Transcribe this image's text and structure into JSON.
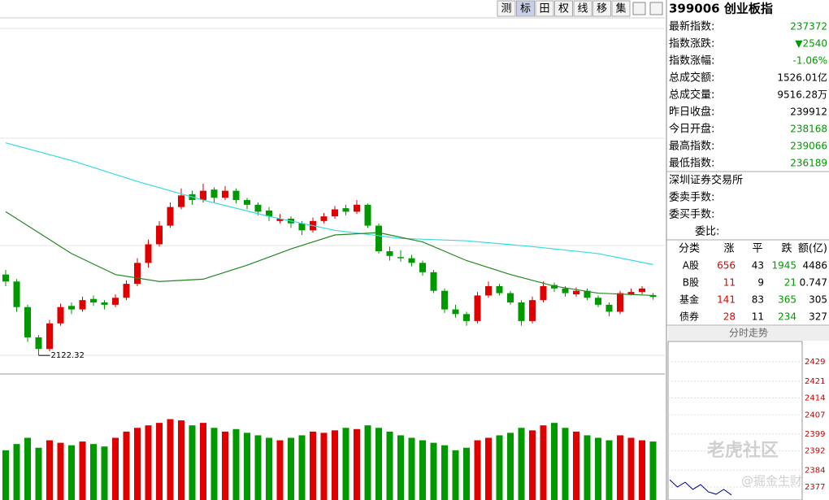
{
  "toolbar": {
    "buttons": [
      "测",
      "标",
      "田",
      "权",
      "线",
      "移",
      "集"
    ],
    "active": 1
  },
  "quote": {
    "title": "399006 创业板指",
    "rows": [
      {
        "label": "最新指数:",
        "value": "237372",
        "color": "#009900"
      },
      {
        "label": "指数涨跌:",
        "value": "▼2540",
        "color": "#009900"
      },
      {
        "label": "指数涨幅:",
        "value": "-1.06%",
        "color": "#009900"
      },
      {
        "label": "总成交额:",
        "value": "1526.01亿",
        "color": "#000000"
      },
      {
        "label": "总成交量:",
        "value": "9516.28万",
        "color": "#000000"
      },
      {
        "label": "昨日收盘:",
        "value": "239912",
        "color": "#000000"
      },
      {
        "label": "今日开盘:",
        "value": "238168",
        "color": "#009900"
      },
      {
        "label": "最高指数:",
        "value": "239066",
        "color": "#009900"
      },
      {
        "label": "最低指数:",
        "value": "236189",
        "color": "#009900"
      }
    ],
    "exchange": "深圳证券交易所",
    "orders": [
      "委卖手数:",
      "委买手数:",
      "委比:"
    ]
  },
  "stats": {
    "header": [
      "分类",
      "涨",
      "平",
      "跌",
      "额(亿)"
    ],
    "column_colors": [
      "#000000",
      "#dd0000",
      "#000000",
      "#009900",
      "#000000"
    ],
    "rows": [
      [
        "A股",
        "656",
        "43",
        "1945",
        "4486"
      ],
      [
        "B股",
        "11",
        "9",
        "21",
        "0.747"
      ],
      [
        "基金",
        "141",
        "83",
        "365",
        "305"
      ],
      [
        "债券",
        "28",
        "11",
        "234",
        "327"
      ]
    ]
  },
  "chart_data": {
    "type": "candlestick",
    "up_color": "#e00000",
    "down_color": "#009900",
    "ylim": [
      2060,
      3580
    ],
    "candles": [
      [
        2470,
        2490,
        2420,
        2440
      ],
      [
        2440,
        2450,
        2310,
        2330
      ],
      [
        2330,
        2340,
        2180,
        2200
      ],
      [
        2200,
        2210,
        2122.32,
        2150
      ],
      [
        2150,
        2275,
        2140,
        2260
      ],
      [
        2260,
        2345,
        2250,
        2330
      ],
      [
        2335,
        2350,
        2300,
        2320
      ],
      [
        2320,
        2375,
        2310,
        2360
      ],
      [
        2365,
        2380,
        2335,
        2350
      ],
      [
        2350,
        2360,
        2320,
        2340
      ],
      [
        2340,
        2385,
        2330,
        2370
      ],
      [
        2370,
        2445,
        2360,
        2430
      ],
      [
        2430,
        2540,
        2420,
        2520
      ],
      [
        2520,
        2620,
        2500,
        2600
      ],
      [
        2600,
        2700,
        2590,
        2680
      ],
      [
        2680,
        2780,
        2670,
        2760
      ],
      [
        2760,
        2840,
        2750,
        2810
      ],
      [
        2815,
        2830,
        2770,
        2790
      ],
      [
        2790,
        2860,
        2780,
        2830
      ],
      [
        2835,
        2845,
        2780,
        2800
      ],
      [
        2800,
        2850,
        2790,
        2830
      ],
      [
        2830,
        2840,
        2775,
        2790
      ],
      [
        2790,
        2800,
        2750,
        2770
      ],
      [
        2770,
        2780,
        2725,
        2740
      ],
      [
        2745,
        2760,
        2700,
        2720
      ],
      [
        2700,
        2730,
        2690,
        2710
      ],
      [
        2710,
        2720,
        2670,
        2690
      ],
      [
        2690,
        2700,
        2640,
        2660
      ],
      [
        2660,
        2715,
        2650,
        2700
      ],
      [
        2700,
        2735,
        2690,
        2720
      ],
      [
        2720,
        2765,
        2710,
        2750
      ],
      [
        2755,
        2770,
        2725,
        2740
      ],
      [
        2740,
        2790,
        2730,
        2770
      ],
      [
        2770,
        2775,
        2670,
        2680
      ],
      [
        2680,
        2690,
        2560,
        2570
      ],
      [
        2570,
        2590,
        2530,
        2550
      ],
      [
        2545,
        2575,
        2525,
        2540
      ],
      [
        2540,
        2555,
        2505,
        2520
      ],
      [
        2520,
        2530,
        2465,
        2480
      ],
      [
        2480,
        2490,
        2390,
        2400
      ],
      [
        2400,
        2410,
        2305,
        2320
      ],
      [
        2320,
        2340,
        2285,
        2300
      ],
      [
        2300,
        2310,
        2250,
        2270
      ],
      [
        2270,
        2395,
        2260,
        2380
      ],
      [
        2380,
        2440,
        2370,
        2420
      ],
      [
        2420,
        2430,
        2380,
        2390
      ],
      [
        2390,
        2400,
        2340,
        2350
      ],
      [
        2350,
        2360,
        2250,
        2270
      ],
      [
        2270,
        2375,
        2260,
        2360
      ],
      [
        2360,
        2440,
        2350,
        2420
      ],
      [
        2425,
        2435,
        2395,
        2410
      ],
      [
        2410,
        2420,
        2375,
        2390
      ],
      [
        2385,
        2415,
        2375,
        2400
      ],
      [
        2400,
        2410,
        2360,
        2370
      ],
      [
        2370,
        2380,
        2330,
        2340
      ],
      [
        2340,
        2350,
        2290,
        2310
      ],
      [
        2310,
        2400,
        2300,
        2390
      ],
      [
        2385,
        2410,
        2380,
        2395
      ],
      [
        2395,
        2420,
        2385,
        2410
      ],
      [
        2381.68,
        2390.66,
        2361.89,
        2373.72
      ]
    ],
    "low_label_index": 3,
    "averages": [
      {
        "color": "#33dddd",
        "x": [
          0,
          6,
          12,
          18,
          24,
          30,
          36,
          42,
          48,
          54,
          59
        ],
        "values": [
          3036,
          2960,
          2870,
          2790,
          2720,
          2660,
          2625,
          2615,
          2590,
          2560,
          2513
        ]
      },
      {
        "color": "#228822",
        "x": [
          0,
          6,
          10,
          14,
          18,
          22,
          26,
          30,
          34,
          38,
          42,
          46,
          50,
          54,
          59
        ],
        "values": [
          2740,
          2560,
          2470,
          2440,
          2450,
          2510,
          2580,
          2640,
          2650,
          2610,
          2530,
          2470,
          2420,
          2390,
          2380
        ]
      }
    ],
    "volume": {
      "ylim": [
        0,
        100
      ],
      "values": [
        40,
        45,
        50,
        42,
        48,
        46,
        44,
        47,
        45,
        43,
        50,
        55,
        58,
        60,
        62,
        65,
        64,
        60,
        62,
        58,
        55,
        57,
        54,
        52,
        50,
        48,
        50,
        52,
        55,
        54,
        56,
        58,
        57,
        60,
        58,
        55,
        52,
        50,
        48,
        46,
        44,
        40,
        42,
        48,
        50,
        52,
        54,
        58,
        56,
        60,
        62,
        58,
        55,
        52,
        50,
        48,
        52,
        50,
        48,
        47
      ]
    }
  },
  "minichart": {
    "title": "分时走势",
    "ylim": [
      2371.6,
      2437.5
    ],
    "yticks": [
      2429,
      2421,
      2414,
      2407,
      2399,
      2392,
      2384,
      2377
    ],
    "values": [
      2380,
      2377,
      2379,
      2376,
      2378,
      2375,
      2374,
      2376,
      2373.7
    ],
    "color": "#000080"
  },
  "watermark": [
    "老虎社区",
    "@掘金生财"
  ]
}
